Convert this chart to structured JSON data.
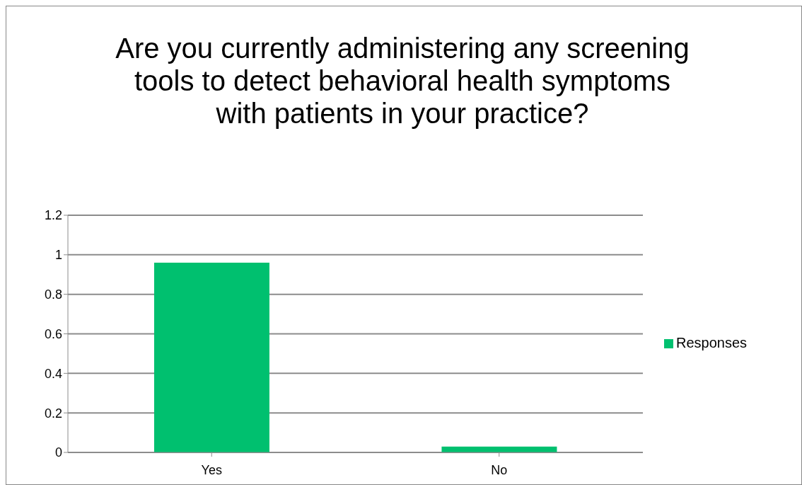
{
  "chart_data": {
    "type": "bar",
    "title": "Are you currently administering any screening tools to detect behavioral health symptoms with patients in your practice?",
    "categories": [
      "Yes",
      "No"
    ],
    "series": [
      {
        "name": "Responses",
        "color": "#00c06f",
        "values": [
          0.96,
          0.03
        ]
      }
    ],
    "ylim": [
      0,
      1.2
    ],
    "yticks": [
      0,
      0.2,
      0.4,
      0.6,
      0.8,
      1,
      1.2
    ],
    "grid": "y",
    "legend": "right"
  }
}
